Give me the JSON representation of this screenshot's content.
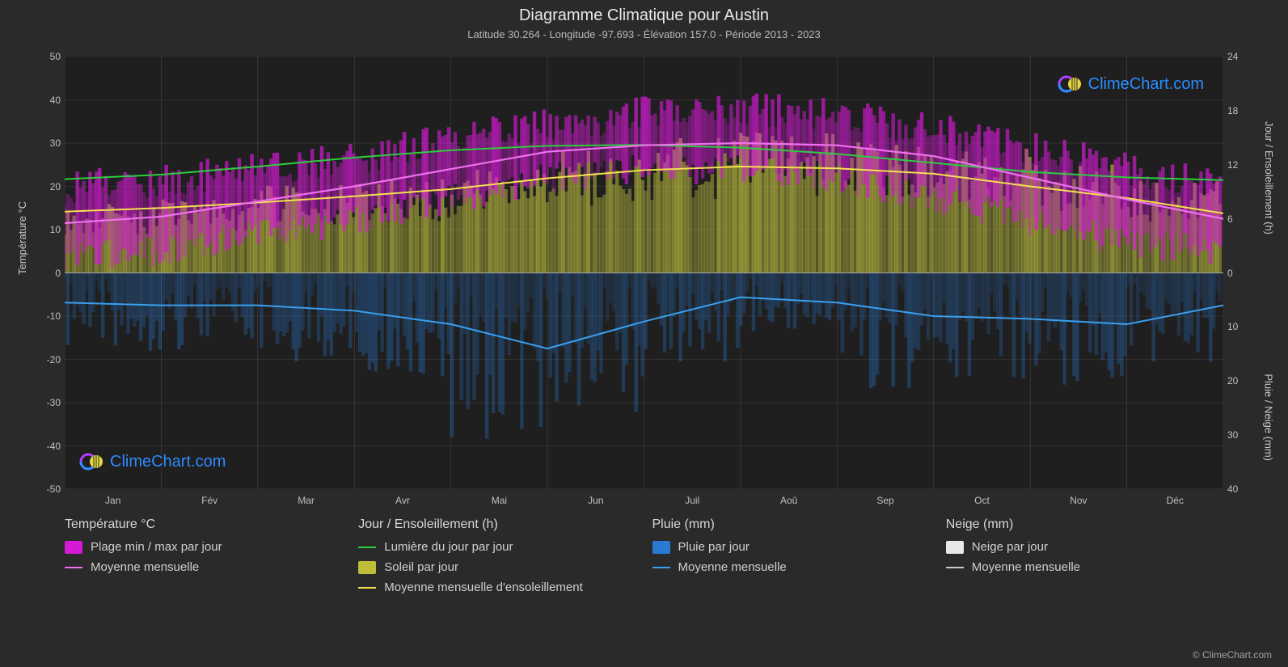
{
  "title": "Diagramme Climatique pour Austin",
  "subtitle": "Latitude 30.264 - Longitude -97.693 - Élévation 157.0 - Période 2013 - 2023",
  "brand": "ClimeChart.com",
  "brand_color": "#2d8cff",
  "copyright": "© ClimeChart.com",
  "chart": {
    "background": "#1f1f1f",
    "grid_color": "#6a6a6a",
    "grid_width": 0.6,
    "months": [
      "Jan",
      "Fév",
      "Mar",
      "Avr",
      "Mai",
      "Jun",
      "Juil",
      "Aoû",
      "Sep",
      "Oct",
      "Nov",
      "Déc"
    ],
    "y_left": {
      "label": "Température °C",
      "min": -50,
      "max": 50,
      "step": 10
    },
    "y_right_top": {
      "label": "Jour / Ensoleillement (h)",
      "min": 0,
      "max": 24,
      "step": 6
    },
    "y_right_bot": {
      "label": "Pluie / Neige (mm)",
      "min": 0,
      "max": 40,
      "step": 10
    },
    "series": {
      "temp_range": {
        "color": "#d41ad4",
        "opacity": 0.55,
        "max": [
          20,
          21,
          24,
          26,
          31,
          34,
          37,
          38,
          37,
          33,
          29,
          24,
          20
        ],
        "min": [
          4,
          5,
          9,
          12,
          17,
          22,
          24,
          24,
          22,
          17,
          12,
          7,
          5
        ]
      },
      "temp_mean": {
        "color": "#f070f0",
        "width": 2.2,
        "values": [
          11.5,
          13,
          16.5,
          20,
          24,
          28,
          29.5,
          30,
          29.5,
          27,
          22,
          17,
          12.5
        ]
      },
      "daylight": {
        "color": "#2ecc40",
        "width": 2,
        "values": [
          10.4,
          10.9,
          11.8,
          12.8,
          13.6,
          14.1,
          14.2,
          13.9,
          13.2,
          12.2,
          11.2,
          10.6,
          10.3
        ]
      },
      "sunshine_bars": {
        "color": "#c0c040",
        "opacity": 0.55,
        "values": [
          6,
          6.5,
          7.5,
          8,
          9,
          10.5,
          11.5,
          12,
          11.5,
          11,
          9.5,
          8,
          6.5
        ]
      },
      "sunshine_mean": {
        "color": "#f5e050",
        "width": 2,
        "values": [
          6.8,
          7.2,
          7.8,
          8.5,
          9.3,
          10.5,
          11.4,
          11.8,
          11.6,
          11.0,
          9.6,
          8.3,
          6.6
        ]
      },
      "rain_bars": {
        "color": "#2a7ad4",
        "opacity": 0.28,
        "values": [
          6,
          6,
          7,
          8,
          13,
          11,
          7,
          5,
          9,
          9,
          9,
          8,
          6
        ]
      },
      "rain_mean": {
        "color": "#3a9ff0",
        "width": 2,
        "values": [
          5.5,
          6,
          6,
          7,
          9.5,
          14,
          9,
          4.5,
          5.5,
          8,
          8.5,
          9.5,
          6
        ]
      },
      "snow_mean": {
        "color": "#c8c8c8",
        "width": 2,
        "values": [
          0,
          0,
          0,
          0,
          0,
          0,
          0,
          0,
          0,
          0,
          0,
          0,
          0
        ]
      }
    }
  },
  "legend": {
    "groups": [
      {
        "title": "Température °C",
        "items": [
          {
            "kind": "swatch",
            "color": "#d41ad4",
            "label": "Plage min / max par jour"
          },
          {
            "kind": "line",
            "color": "#f070f0",
            "label": "Moyenne mensuelle"
          }
        ]
      },
      {
        "title": "Jour / Ensoleillement (h)",
        "items": [
          {
            "kind": "line",
            "color": "#2ecc40",
            "label": "Lumière du jour par jour"
          },
          {
            "kind": "swatch",
            "color": "#bdbd3a",
            "label": "Soleil par jour"
          },
          {
            "kind": "line",
            "color": "#f5e050",
            "label": "Moyenne mensuelle d'ensoleillement"
          }
        ]
      },
      {
        "title": "Pluie (mm)",
        "items": [
          {
            "kind": "swatch",
            "color": "#2a7ad4",
            "label": "Pluie par jour"
          },
          {
            "kind": "line",
            "color": "#3a9ff0",
            "label": "Moyenne mensuelle"
          }
        ]
      },
      {
        "title": "Neige (mm)",
        "items": [
          {
            "kind": "swatch",
            "color": "#e8e8e8",
            "label": "Neige par jour"
          },
          {
            "kind": "line",
            "color": "#c8c8c8",
            "label": "Moyenne mensuelle"
          }
        ]
      }
    ]
  }
}
